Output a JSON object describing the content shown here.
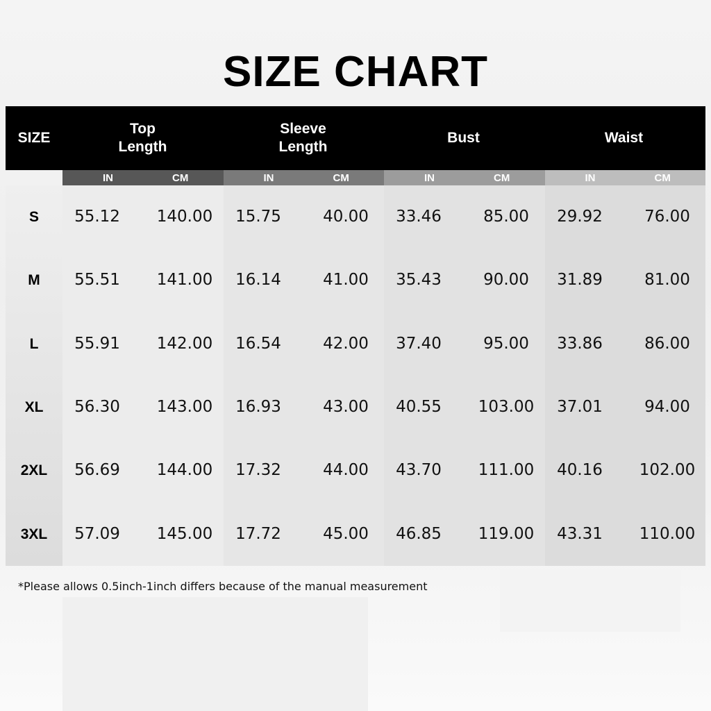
{
  "title": "SIZE CHART",
  "header": {
    "size": "SIZE",
    "groups": [
      "Top\nLength",
      "Sleeve\nLength",
      "Bust",
      "Waist"
    ],
    "units": [
      "IN",
      "CM"
    ]
  },
  "subheader_colors": [
    "#575757",
    "#7a7a7a",
    "#9c9c9c",
    "#bdbdbd"
  ],
  "rows": [
    {
      "size": "S",
      "values": [
        "55.12",
        "140.00",
        "15.75",
        "40.00",
        "33.46",
        "85.00",
        "29.92",
        "76.00"
      ]
    },
    {
      "size": "M",
      "values": [
        "55.51",
        "141.00",
        "16.14",
        "41.00",
        "35.43",
        "90.00",
        "31.89",
        "81.00"
      ]
    },
    {
      "size": "L",
      "values": [
        "55.91",
        "142.00",
        "16.54",
        "42.00",
        "37.40",
        "95.00",
        "33.86",
        "86.00"
      ]
    },
    {
      "size": "XL",
      "values": [
        "56.30",
        "143.00",
        "16.93",
        "43.00",
        "40.55",
        "103.00",
        "37.01",
        "94.00"
      ]
    },
    {
      "size": "2XL",
      "values": [
        "56.69",
        "144.00",
        "17.32",
        "44.00",
        "43.70",
        "111.00",
        "40.16",
        "102.00"
      ]
    },
    {
      "size": "3XL",
      "values": [
        "57.09",
        "145.00",
        "17.72",
        "45.00",
        "46.85",
        "119.00",
        "43.31",
        "110.00"
      ]
    }
  ],
  "note": "*Please allows 0.5inch-1inch differs because of the manual measurement"
}
